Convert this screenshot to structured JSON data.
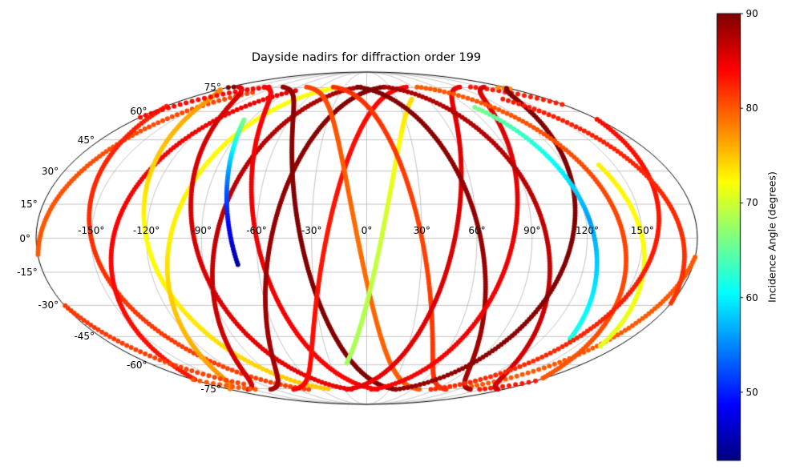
{
  "figure": {
    "background": "#ffffff"
  },
  "chart_data": {
    "type": "scatter",
    "projection": "mollweide",
    "title": "Dayside nadirs for diffraction order 199",
    "grid": {
      "on": true,
      "lon_tick_values": [
        -150,
        -120,
        -90,
        -60,
        -30,
        0,
        30,
        60,
        90,
        120,
        150
      ],
      "lon_tick_labels": [
        "-150°",
        "-120°",
        "-90°",
        "-60°",
        "-30°",
        "0°",
        "30°",
        "60°",
        "90°",
        "120°",
        "150°"
      ],
      "lat_tick_values": [
        75,
        60,
        45,
        30,
        15,
        0,
        -15,
        -30,
        -45,
        -60,
        -75
      ],
      "lat_tick_labels": [
        "75°",
        "60°",
        "45°",
        "30°",
        "15°",
        "0°",
        "-15°",
        "-30°",
        "-45°",
        "-60°",
        "-75°"
      ],
      "grid_color": "#b3b3b3",
      "boundary_color": "#000000"
    },
    "colorbar": {
      "label": "Incidence Angle (degrees)",
      "cmap": "jet",
      "vmin": 42.8,
      "vmax": 90,
      "tick_values": [
        50,
        60,
        70,
        80,
        90
      ],
      "tick_labels": [
        "50",
        "60",
        "70",
        "80",
        "90"
      ]
    },
    "marker_radius_px": 3,
    "u_step_deg": 1.2,
    "inclination_deg": 76,
    "tracks": [
      {
        "node_lon_deg": -178,
        "dir": 1,
        "u_range_deg": [
          -82,
          78
        ],
        "incidence_profile": [
          80,
          80,
          81
        ]
      },
      {
        "node_lon_deg": -150,
        "dir": -1,
        "u_range_deg": [
          -86,
          86
        ],
        "incidence_profile": [
          81,
          82,
          83
        ]
      },
      {
        "node_lon_deg": -138,
        "dir": 1,
        "u_range_deg": [
          -86,
          80
        ],
        "incidence_profile": [
          83,
          84,
          85
        ]
      },
      {
        "node_lon_deg": -120,
        "dir": -1,
        "u_range_deg": [
          -85,
          85
        ],
        "incidence_profile": [
          75,
          72,
          78
        ]
      },
      {
        "node_lon_deg": -107,
        "dir": 1,
        "u_range_deg": [
          -85,
          85
        ],
        "incidence_profile": [
          78,
          73,
          72
        ]
      },
      {
        "node_lon_deg": -94,
        "dir": -1,
        "u_range_deg": [
          -86,
          86
        ],
        "incidence_profile": [
          85,
          86,
          86
        ]
      },
      {
        "node_lon_deg": -82,
        "dir": 1,
        "u_range_deg": [
          -86,
          86
        ],
        "incidence_profile": [
          86,
          87,
          88
        ]
      },
      {
        "node_lon_deg": -74,
        "dir": -1,
        "u_range_deg": [
          -12,
          58
        ],
        "incidence_profile": [
          44,
          53,
          66
        ]
      },
      {
        "node_lon_deg": -60,
        "dir": -1,
        "u_range_deg": [
          -86,
          86
        ],
        "incidence_profile": [
          84,
          85,
          84
        ]
      },
      {
        "node_lon_deg": -52,
        "dir": 1,
        "u_range_deg": [
          -86,
          86
        ],
        "incidence_profile": [
          88,
          89,
          90
        ]
      },
      {
        "node_lon_deg": -36,
        "dir": -1,
        "u_range_deg": [
          -86,
          86
        ],
        "incidence_profile": [
          90,
          90,
          89
        ]
      },
      {
        "node_lon_deg": -22,
        "dir": 1,
        "u_range_deg": [
          -86,
          86
        ],
        "incidence_profile": [
          84,
          83,
          84
        ]
      },
      {
        "node_lon_deg": -5,
        "dir": -1,
        "u_range_deg": [
          -86,
          86
        ],
        "incidence_profile": [
          80,
          79,
          81
        ]
      },
      {
        "node_lon_deg": 8,
        "dir": 1,
        "u_range_deg": [
          -62,
          72
        ],
        "incidence_profile": [
          68,
          70,
          74
        ]
      },
      {
        "node_lon_deg": 30,
        "dir": -1,
        "u_range_deg": [
          -86,
          86
        ],
        "incidence_profile": [
          82,
          81,
          82
        ]
      },
      {
        "node_lon_deg": 48,
        "dir": 1,
        "u_range_deg": [
          -86,
          86
        ],
        "incidence_profile": [
          85,
          86,
          85
        ]
      },
      {
        "node_lon_deg": 62,
        "dir": -1,
        "u_range_deg": [
          -86,
          86
        ],
        "incidence_profile": [
          88,
          89,
          90
        ]
      },
      {
        "node_lon_deg": 80,
        "dir": 1,
        "u_range_deg": [
          -86,
          86
        ],
        "incidence_profile": [
          84,
          85,
          86
        ]
      },
      {
        "node_lon_deg": 98,
        "dir": -1,
        "u_range_deg": [
          -86,
          86
        ],
        "incidence_profile": [
          86,
          87,
          88
        ]
      },
      {
        "node_lon_deg": 112,
        "dir": 1,
        "u_range_deg": [
          -86,
          86
        ],
        "incidence_profile": [
          89,
          90,
          90
        ]
      },
      {
        "node_lon_deg": 124,
        "dir": -1,
        "u_range_deg": [
          -48,
          66
        ],
        "incidence_profile": [
          62,
          56,
          66
        ]
      },
      {
        "node_lon_deg": 150,
        "dir": -1,
        "u_range_deg": [
          -52,
          34
        ],
        "incidence_profile": [
          71,
          72,
          73
        ]
      },
      {
        "node_lon_deg": 140,
        "dir": -1,
        "u_range_deg": [
          -86,
          86
        ],
        "incidence_profile": [
          80,
          81,
          80
        ]
      },
      {
        "node_lon_deg": 158,
        "dir": 1,
        "u_range_deg": [
          -86,
          86
        ],
        "incidence_profile": [
          82,
          83,
          84
        ]
      },
      {
        "node_lon_deg": 172,
        "dir": -1,
        "u_range_deg": [
          -78,
          72
        ],
        "incidence_profile": [
          81,
          82,
          83
        ]
      }
    ]
  }
}
